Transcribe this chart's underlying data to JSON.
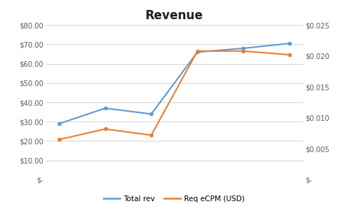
{
  "title": "Revenue",
  "title_fontsize": 12,
  "title_fontweight": "bold",
  "x": [
    0,
    1,
    2,
    3,
    4,
    5
  ],
  "total_rev": [
    29.0,
    37.0,
    34.0,
    66.0,
    68.0,
    70.5
  ],
  "req_ecpm": [
    0.0065,
    0.0082,
    0.0072,
    0.0208,
    0.0208,
    0.0202
  ],
  "total_rev_color": "#5B9BD5",
  "req_ecpm_color": "#ED7D31",
  "left_ylim": [
    0,
    80
  ],
  "right_ylim": [
    0,
    0.025
  ],
  "left_yticks": [
    0,
    10,
    20,
    30,
    40,
    50,
    60,
    70,
    80
  ],
  "right_yticks": [
    0,
    0.005,
    0.01,
    0.015,
    0.02,
    0.025
  ],
  "left_yticklabels": [
    "$-",
    "$10.00",
    "$20.00",
    "$30.00",
    "$40.00",
    "$50.00",
    "$60.00",
    "$70.00",
    "$80.00"
  ],
  "right_yticklabels": [
    "$-",
    "$0.005",
    "$0.010",
    "$0.015",
    "$0.020",
    "$0.025"
  ],
  "legend_labels": [
    "Total rev",
    "Req eCPM (USD)"
  ],
  "background_color": "#FFFFFF",
  "grid_color": "#D3D3D3",
  "tick_color": "#595959",
  "line_width": 1.5,
  "marker": "o",
  "marker_size": 3
}
